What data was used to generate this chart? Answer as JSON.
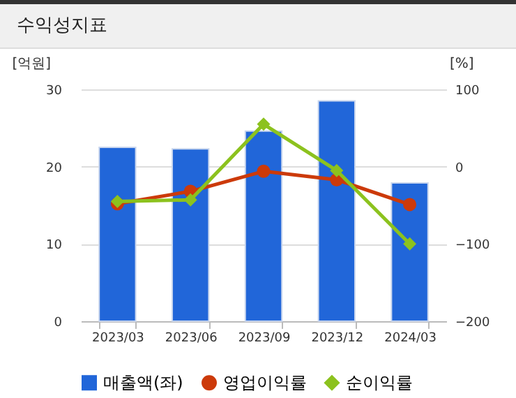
{
  "chart_data": {
    "type": "bar",
    "title": "수익성지표",
    "ylabel": "[억원]",
    "y2label": "[%]",
    "categories": [
      "2023/03",
      "2023/06",
      "2023/09",
      "2023/12",
      "2024/03"
    ],
    "series": [
      {
        "name": "매출액(좌)",
        "color": "#2166d9",
        "values": [
          22.5,
          22.3,
          24.6,
          28.5,
          17.9
        ]
      },
      {
        "name": "영업이익률",
        "type": "line",
        "axis": "y2",
        "marker": "circle",
        "color": "#cc3a0a",
        "values": [
          -48,
          -32,
          -6,
          -17,
          -49
        ]
      },
      {
        "name": "순이익률",
        "type": "line",
        "axis": "y2",
        "marker": "diamond",
        "color": "#8cc21e",
        "values": [
          -45,
          -43,
          55,
          -5,
          -100
        ]
      }
    ],
    "ylim": [
      0,
      30
    ],
    "yticks": [
      0,
      10,
      20,
      30
    ],
    "y2lim": [
      -200,
      100
    ],
    "y2ticks": [
      -200,
      -100,
      0,
      100
    ],
    "grid": "y",
    "legend": "bottom"
  }
}
